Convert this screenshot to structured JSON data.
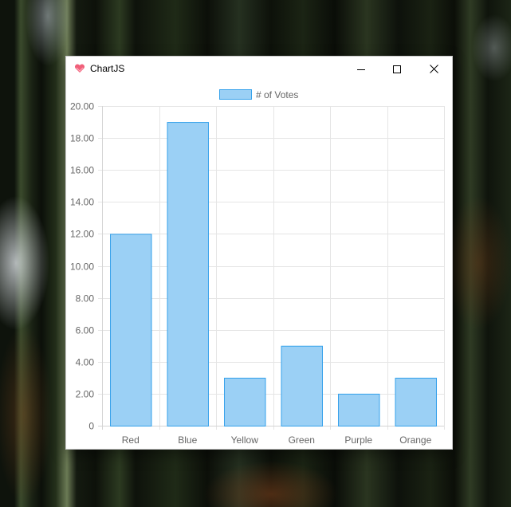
{
  "window": {
    "title": "ChartJS"
  },
  "chart_data": {
    "type": "bar",
    "categories": [
      "Red",
      "Blue",
      "Yellow",
      "Green",
      "Purple",
      "Orange"
    ],
    "series": [
      {
        "name": "# of Votes",
        "values": [
          12,
          19,
          3,
          5,
          2,
          3
        ]
      }
    ],
    "ylim": [
      0,
      20
    ],
    "yticks": [
      "0",
      "2.00",
      "4.00",
      "6.00",
      "8.00",
      "10.00",
      "12.00",
      "14.00",
      "16.00",
      "18.00",
      "20.00"
    ],
    "ytick_values": [
      0,
      2,
      4,
      6,
      8,
      10,
      12,
      14,
      16,
      18,
      20
    ],
    "legend": "top",
    "grid": true,
    "colors": {
      "fill": "#9bd0f5",
      "stroke": "#36a2eb",
      "grid": "#e5e5e5",
      "text": "#666666"
    }
  }
}
